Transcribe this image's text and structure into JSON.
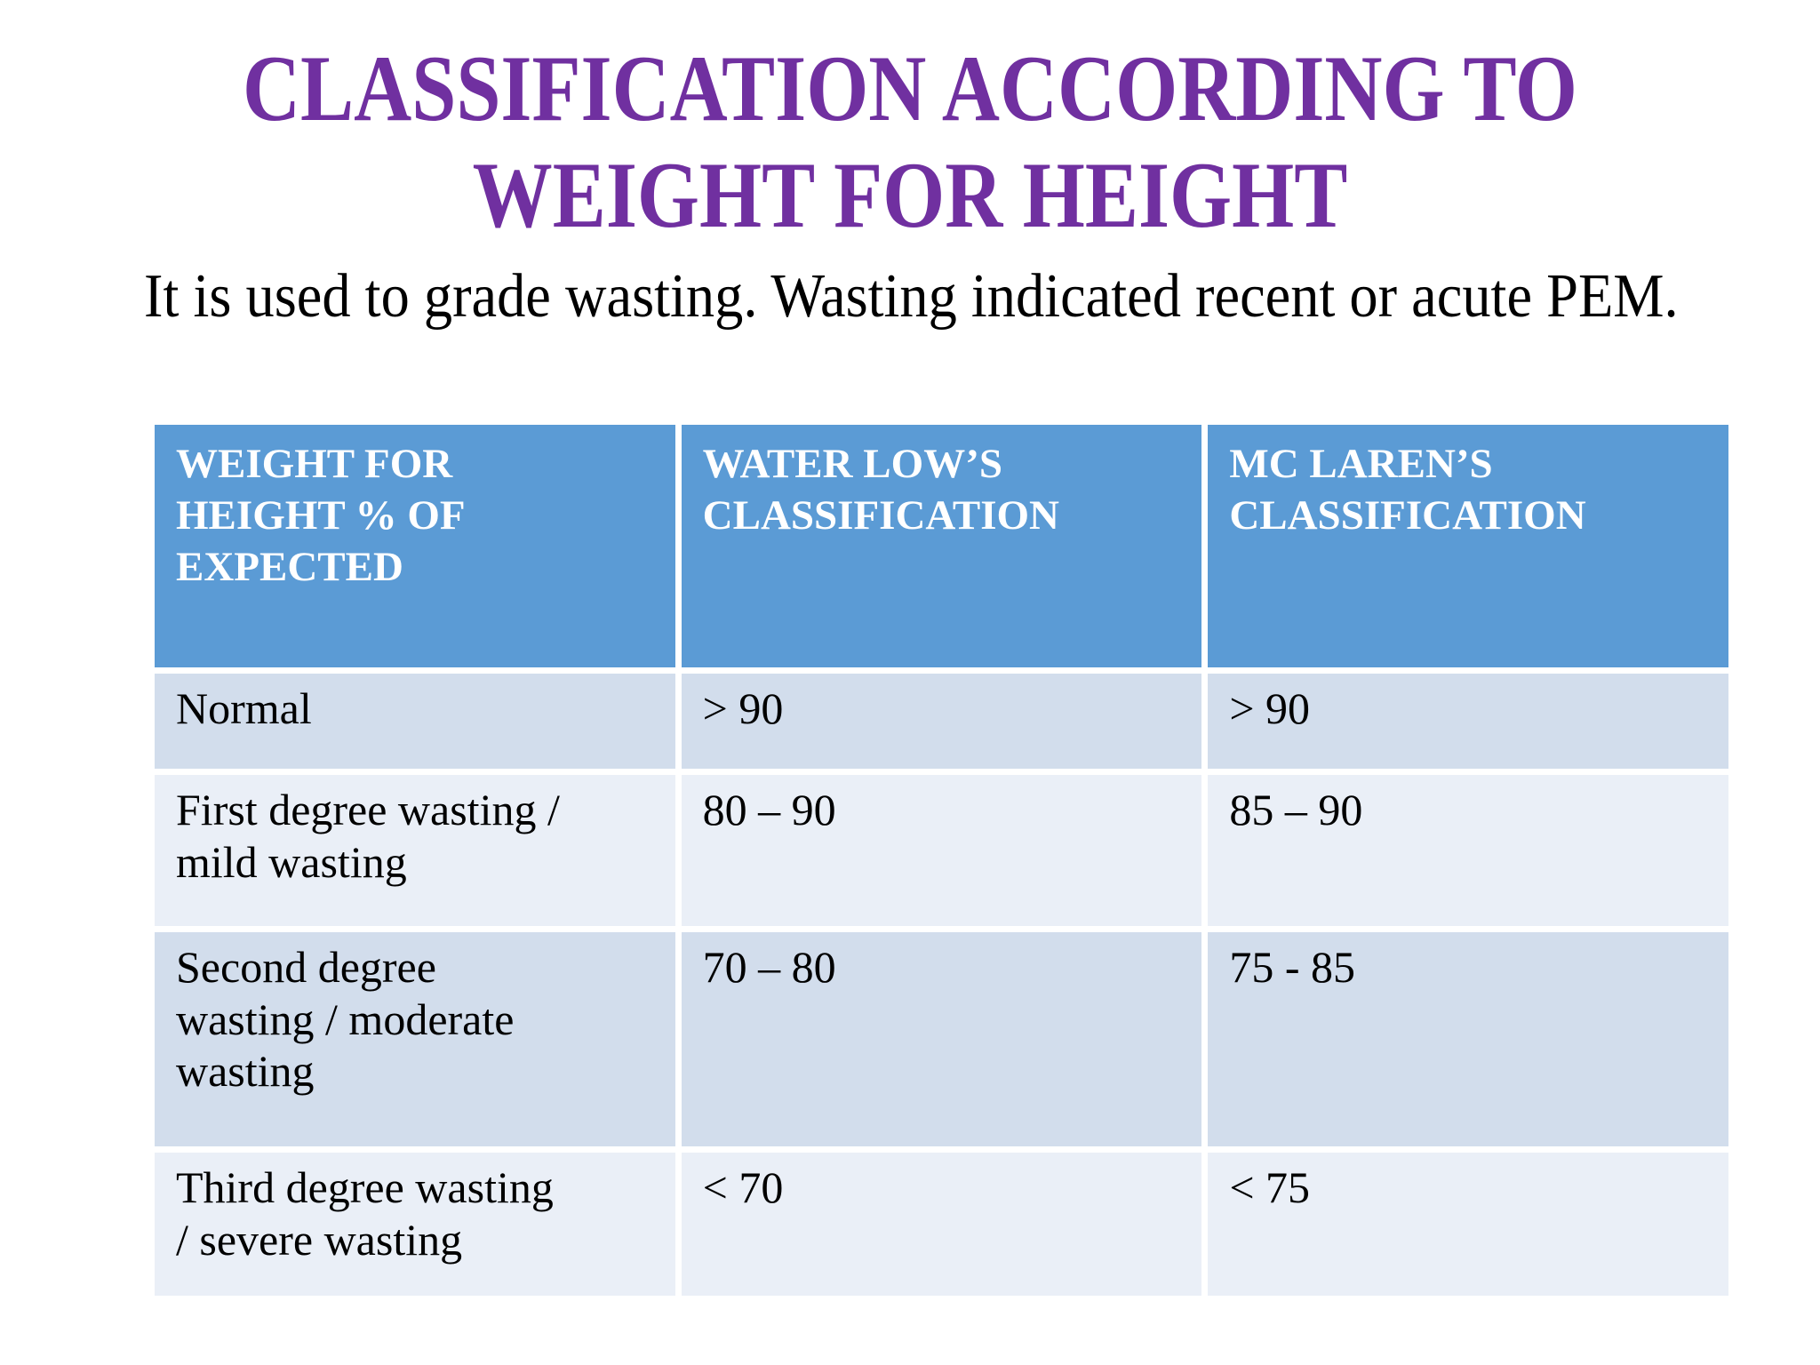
{
  "title": {
    "line1": "CLASSIFICATION ACCORDING TO",
    "line2": "WEIGHT FOR HEIGHT"
  },
  "intro": {
    "text": "It is used to grade wasting. Wasting indicated recent or acute PEM."
  },
  "table": {
    "headers": [
      {
        "lines": [
          "WEIGHT FOR",
          "HEIGHT % OF",
          "EXPECTED"
        ]
      },
      {
        "lines": [
          "WATER LOW’S",
          "CLASSIFICATION"
        ]
      },
      {
        "lines": [
          "MC LAREN’S",
          "CLASSIFICATION"
        ]
      }
    ],
    "rows": [
      {
        "label_lines": [
          "Normal"
        ],
        "waterlow": "> 90",
        "mclaren": "> 90"
      },
      {
        "label_lines": [
          "First degree wasting /",
          "mild wasting"
        ],
        "waterlow": "80 – 90",
        "mclaren": "85 – 90"
      },
      {
        "label_lines": [
          "Second degree",
          "wasting / moderate",
          "wasting"
        ],
        "waterlow": "70 – 80",
        "mclaren": "75 - 85"
      },
      {
        "label_lines": [
          "Third degree wasting",
          "/ severe wasting"
        ],
        "waterlow": "< 70",
        "mclaren": "< 75"
      }
    ]
  },
  "colors": {
    "title_purple": "#7030a0",
    "header_blue": "#5b9bd5",
    "row_band_dark": "#d2ddec",
    "row_band_light": "#eaeff7",
    "text_black": "#000000",
    "background": "#ffffff"
  }
}
